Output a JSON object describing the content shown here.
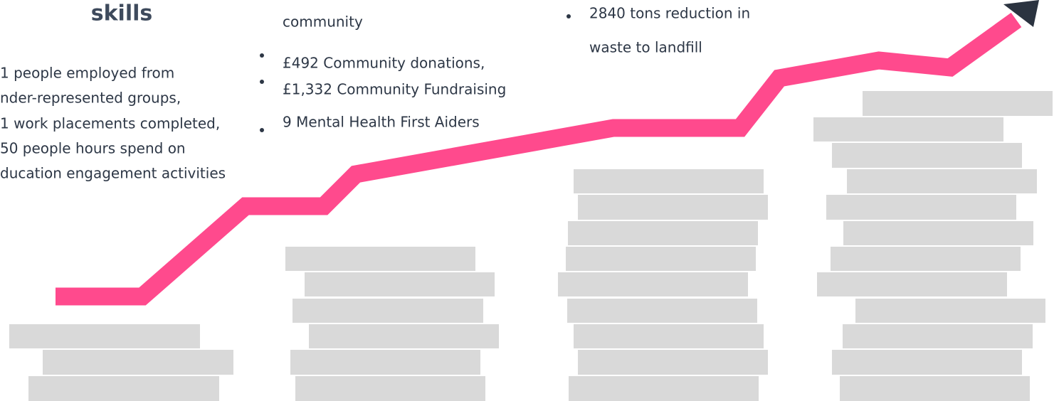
{
  "columns": [
    {
      "heading": "skills",
      "lines": [
        "1 people employed from",
        "nder-represented groups,",
        "1 work placements completed,",
        "50 people hours spend on",
        "ducation engagement activities"
      ]
    },
    {
      "continuation": "community",
      "bullets": [
        "£492 Community donations,",
        "£1,332 Community Fundraising",
        "9 Mental Health First Aiders"
      ]
    },
    {
      "lines": [
        "2840 tons reduction in",
        "waste to landfill"
      ]
    }
  ]
}
